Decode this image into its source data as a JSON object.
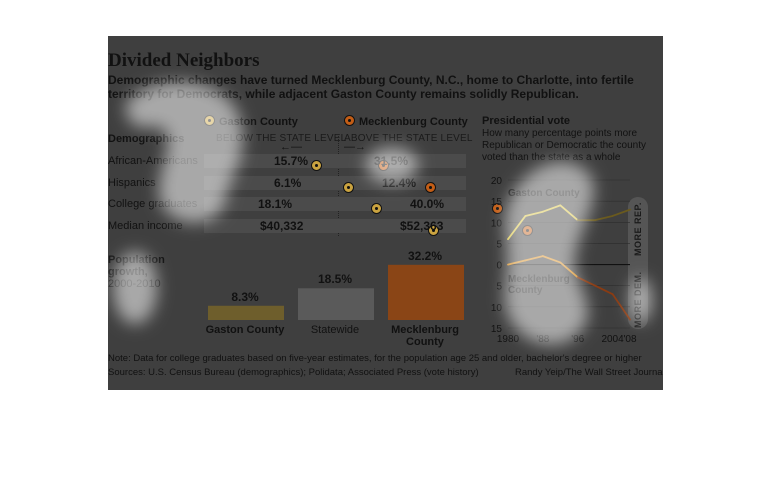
{
  "header": {
    "title": "Divided Neighbors",
    "subtitle": "Demographic changes have turned Mecklenburg County, N.C., home to Charlotte, into fertile territory for Democrats, while adjacent Gaston County remains solidly Republican."
  },
  "legend": {
    "gaston": "Gaston County",
    "mecklenburg": "Mecklenburg County"
  },
  "demographics": {
    "heading": "Demographics",
    "below": "BELOW THE STATE LEVEL",
    "above": "ABOVE THE STATE LEVEL",
    "rows": [
      {
        "label": "African-Americans",
        "gaston": "15.7%",
        "mecklenburg": "31.5%"
      },
      {
        "label": "Hispanics",
        "gaston": "6.1%",
        "mecklenburg": "12.4%"
      },
      {
        "label": "College graduates",
        "gaston": "18.1%",
        "mecklenburg": "40.0%"
      },
      {
        "label": "Median income",
        "gaston": "$40,332",
        "mecklenburg": "$52,363"
      }
    ]
  },
  "population": {
    "heading_bold": "Population growth,",
    "heading_years": "2000-2010"
  },
  "vote": {
    "heading": "Presidential vote",
    "description": "How many percentage points more Republican or Democratic the county voted than the state as a whole",
    "gaston_label": "Gaston County",
    "meck_label_1": "Mecklenburg",
    "meck_label_2": "County",
    "more_rep": "MORE REP.",
    "more_dem": "MORE DEM."
  },
  "footer": {
    "note": "Note: Data for college graduates based on five-year estimates, for the population age 25 and older, bachelor's degree or higher",
    "sources": "Sources: U.S. Census Bureau (demographics); Polidata; Associated Press (vote history)",
    "credit": "Randy Yeip/The Wall Street Journal"
  },
  "colors": {
    "gaston": "#caa340",
    "mecklenburg": "#c25d16",
    "statewide": "#5a5a5a",
    "gaston_bar": "#6e5e2c",
    "meck_bar": "#8a4516",
    "gaston_line": "#d8c23a",
    "gaston_line_dark": "#6a5a1e",
    "meck_line": "#d68a1a",
    "meck_line_dark": "#8a3b12"
  },
  "chart_data": [
    {
      "type": "bar",
      "title": "Population growth, 2000-2010",
      "categories": [
        "Gaston County",
        "Statewide",
        "Mecklenburg County"
      ],
      "values": [
        8.3,
        18.5,
        32.2
      ],
      "value_labels": [
        "8.3%",
        "18.5%",
        "32.2%"
      ],
      "ylim": [
        0,
        35
      ]
    },
    {
      "type": "line",
      "title": "Presidential vote",
      "x": [
        1980,
        1984,
        1988,
        1992,
        1996,
        2000,
        2004,
        2008
      ],
      "x_tick_labels": [
        "1980",
        "'88",
        "'96",
        "2004",
        "'08"
      ],
      "x_ticks": [
        1980,
        1988,
        1996,
        2004,
        2008
      ],
      "y_tick_labels": [
        "20",
        "15",
        "10",
        "5",
        "0",
        "5",
        "10",
        "15"
      ],
      "y_ticks": [
        20,
        15,
        10,
        5,
        0,
        -5,
        -10,
        -15
      ],
      "ylim": [
        -15,
        20
      ],
      "series": [
        {
          "name": "Gaston County",
          "values": [
            6,
            11.5,
            12.5,
            14,
            10.5,
            10.5,
            11.5,
            13
          ]
        },
        {
          "name": "Mecklenburg County",
          "values": [
            0,
            1,
            2,
            0.5,
            -3,
            -5,
            -7,
            -13
          ]
        }
      ]
    }
  ]
}
